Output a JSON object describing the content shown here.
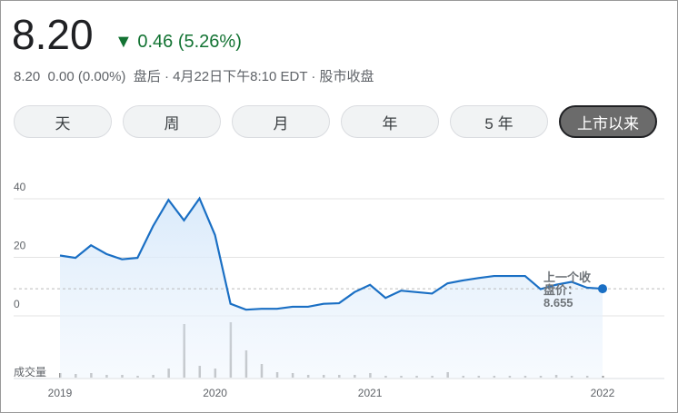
{
  "header": {
    "price": "8.20",
    "change": "0.46 (5.26%)",
    "after_price": "8.20",
    "after_change": "0.00 (0.00%)",
    "status": "盘后 · 4月22日下午8:10 EDT · 股市收盘"
  },
  "tabs": {
    "items": [
      "天",
      "周",
      "月",
      "年",
      "5 年",
      "上市以来"
    ],
    "selected": 5
  },
  "chart_data": {
    "type": "line",
    "categories": [
      "2019",
      null,
      null,
      null,
      null,
      null,
      null,
      null,
      null,
      null,
      "2020",
      null,
      null,
      null,
      null,
      null,
      null,
      null,
      null,
      null,
      "2021",
      null,
      null,
      null,
      null,
      null,
      null,
      null,
      null,
      null,
      null,
      null,
      null,
      null,
      null,
      "2022"
    ],
    "values": [
      20,
      19.2,
      23.5,
      20.5,
      18.7,
      19.2,
      30,
      39,
      32,
      39.5,
      27,
      3.5,
      1.5,
      1.8,
      1.8,
      2.5,
      2.5,
      3.5,
      3.7,
      7.5,
      10,
      5.5,
      8,
      7.5,
      7,
      10.5,
      11.5,
      12.3,
      13,
      13,
      13,
      8.5,
      10,
      11,
      9,
      8.655
    ],
    "color": "#1a6fc4",
    "ylim": [
      0,
      40
    ],
    "yticks": [
      0,
      20,
      40
    ],
    "grid": true,
    "previous_close": 8.655,
    "previous_close_label": "上一个收盘价：",
    "volume_label": "成交量",
    "volume": [
      5,
      4,
      5,
      3,
      3,
      2,
      3,
      10,
      59,
      13,
      10,
      61,
      30,
      15,
      6,
      5,
      3,
      3,
      3,
      3,
      5,
      2,
      2,
      2,
      2,
      6,
      2,
      2,
      2,
      2,
      2,
      2,
      3,
      2,
      2,
      2
    ],
    "volume_color": "#9a9a9a"
  }
}
